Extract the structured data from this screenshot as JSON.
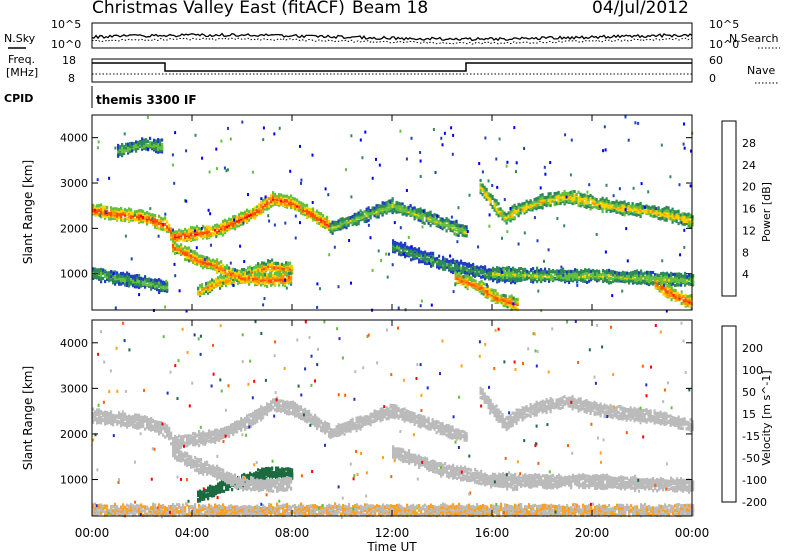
{
  "header": {
    "title": "Christmas Valley East (fitACF)",
    "beam": "Beam 18",
    "date": "04/Jul/2012"
  },
  "strip_panels": {
    "nsky_label": "N.Sky",
    "nsearch_label": "N.Search",
    "noise_ticks_left": [
      "10^5",
      "10^0"
    ],
    "noise_ticks_right": [
      "10^5",
      "10^0"
    ],
    "freq_label": "Freq.",
    "freq_unit": "[MHz]",
    "freq_ticks": [
      "18",
      "8"
    ],
    "nave_label": "Nave",
    "nave_ticks": [
      "60",
      "0"
    ],
    "cpid_label": "CPID",
    "cpid_value": "themis 3300 IF"
  },
  "chart_data": [
    {
      "type": "heatmap",
      "quantity": "Power",
      "ylabel": "Slant Range [km]",
      "colorbar_label": "Power [dB]",
      "colorbar_ticks": [
        "4",
        "8",
        "12",
        "16",
        "20",
        "24",
        "28"
      ],
      "colorbar_range": [
        0,
        32
      ],
      "colorscale": [
        "#0000ff",
        "#2040c0",
        "#2e8b57",
        "#66c040",
        "#ffd000",
        "#ff9000",
        "#ff5000",
        "#ff0000"
      ],
      "yticks": [
        "1000",
        "2000",
        "3000",
        "4000"
      ],
      "ylim": [
        200,
        4500
      ],
      "bands": [
        {
          "t": [
            0,
            1,
            2,
            3,
            3.2,
            5,
            6.5,
            7.2,
            8,
            9.5
          ],
          "range": [
            2400,
            2300,
            2250,
            2050,
            1800,
            1950,
            2350,
            2650,
            2550,
            2050
          ],
          "power": 28
        },
        {
          "t": [
            4.2,
            5,
            6,
            7,
            8
          ],
          "range": [
            600,
            800,
            950,
            1150,
            1100
          ],
          "power": 24
        },
        {
          "t": [
            3.2,
            4.2,
            5,
            5.5,
            6,
            7,
            8
          ],
          "range": [
            1600,
            1300,
            1150,
            1000,
            900,
            850,
            900
          ],
          "power": 26
        },
        {
          "t": [
            0,
            1,
            2,
            3
          ],
          "range": [
            1000,
            900,
            800,
            700
          ],
          "power": 14
        },
        {
          "t": [
            9.5,
            11,
            12,
            13,
            14,
            15
          ],
          "range": [
            2000,
            2300,
            2500,
            2300,
            2100,
            1900
          ],
          "power": 16
        },
        {
          "t": [
            12,
            13,
            14,
            15,
            16,
            17
          ],
          "range": [
            1600,
            1400,
            1200,
            1100,
            950,
            900
          ],
          "power": 12
        },
        {
          "t": [
            14.5,
            15.5,
            16,
            17
          ],
          "range": [
            900,
            700,
            500,
            300
          ],
          "power": 26
        },
        {
          "t": [
            15.5,
            16.5,
            17,
            18,
            19,
            20,
            21,
            22,
            23,
            24
          ],
          "range": [
            2900,
            2200,
            2400,
            2600,
            2700,
            2550,
            2450,
            2400,
            2300,
            2150
          ],
          "power": 20
        },
        {
          "t": [
            16,
            18,
            20,
            22,
            24
          ],
          "range": [
            1000,
            950,
            950,
            900,
            850
          ],
          "power": 16
        },
        {
          "t": [
            22.5,
            23,
            23.5,
            24
          ],
          "range": [
            800,
            600,
            450,
            350
          ],
          "power": 28
        },
        {
          "t": [
            1,
            2,
            2.8
          ],
          "range": [
            3700,
            3850,
            3800
          ],
          "power": 14
        }
      ]
    },
    {
      "type": "heatmap",
      "quantity": "Velocity",
      "ylabel": "Slant Range [km]",
      "xlabel": "Time UT",
      "colorbar_label": "Velocity [m s^-1]",
      "colorbar_ticks": [
        "200",
        "100",
        "50",
        "15",
        "-15",
        "-50",
        "-100",
        "-200"
      ],
      "colorbar_range": [
        -250,
        250
      ],
      "colorscale": [
        "#2030c0",
        "#1c6a40",
        "#60c040",
        "#bbbbbb",
        "#bbbbbb",
        "#ffa020",
        "#ff6000",
        "#ff0000"
      ],
      "yticks": [
        "1000",
        "2000",
        "3000",
        "4000"
      ],
      "ylim": [
        200,
        4500
      ],
      "xticks": [
        "00:00",
        "04:00",
        "08:00",
        "12:00",
        "16:00",
        "20:00",
        "00:00"
      ],
      "xlim": [
        0,
        24
      ],
      "bands": [
        {
          "t": [
            0,
            1,
            2,
            3,
            3.2,
            5,
            6.5,
            7.2,
            8,
            9.5
          ],
          "range": [
            2400,
            2300,
            2250,
            2050,
            1800,
            1950,
            2350,
            2650,
            2550,
            2050
          ],
          "velocity": 0
        },
        {
          "t": [
            4.2,
            5,
            6,
            7,
            8
          ],
          "range": [
            600,
            800,
            950,
            1150,
            1100
          ],
          "velocity": 150
        },
        {
          "t": [
            3.2,
            4.2,
            5,
            5.5,
            6,
            7,
            8
          ],
          "range": [
            1600,
            1300,
            1150,
            1000,
            900,
            850,
            900
          ],
          "velocity": -40
        },
        {
          "t": [
            9.5,
            11,
            12,
            13,
            14,
            15
          ],
          "range": [
            2000,
            2300,
            2500,
            2300,
            2100,
            1900
          ],
          "velocity": 5
        },
        {
          "t": [
            12,
            13,
            14,
            15,
            16,
            17
          ],
          "range": [
            1600,
            1400,
            1200,
            1100,
            950,
            900
          ],
          "velocity": 0
        },
        {
          "t": [
            15.5,
            16.5,
            17,
            18,
            19,
            20,
            21,
            22,
            23,
            24
          ],
          "range": [
            2900,
            2200,
            2400,
            2600,
            2700,
            2550,
            2450,
            2400,
            2300,
            2150
          ],
          "velocity": 0
        },
        {
          "t": [
            16,
            18,
            20,
            22,
            24
          ],
          "range": [
            1000,
            950,
            950,
            900,
            850
          ],
          "velocity": 0
        },
        {
          "t": [
            0,
            3,
            6,
            9,
            12,
            15,
            18,
            21,
            24
          ],
          "range": [
            300,
            300,
            300,
            300,
            300,
            300,
            300,
            300,
            300
          ],
          "velocity": -60
        }
      ]
    }
  ]
}
